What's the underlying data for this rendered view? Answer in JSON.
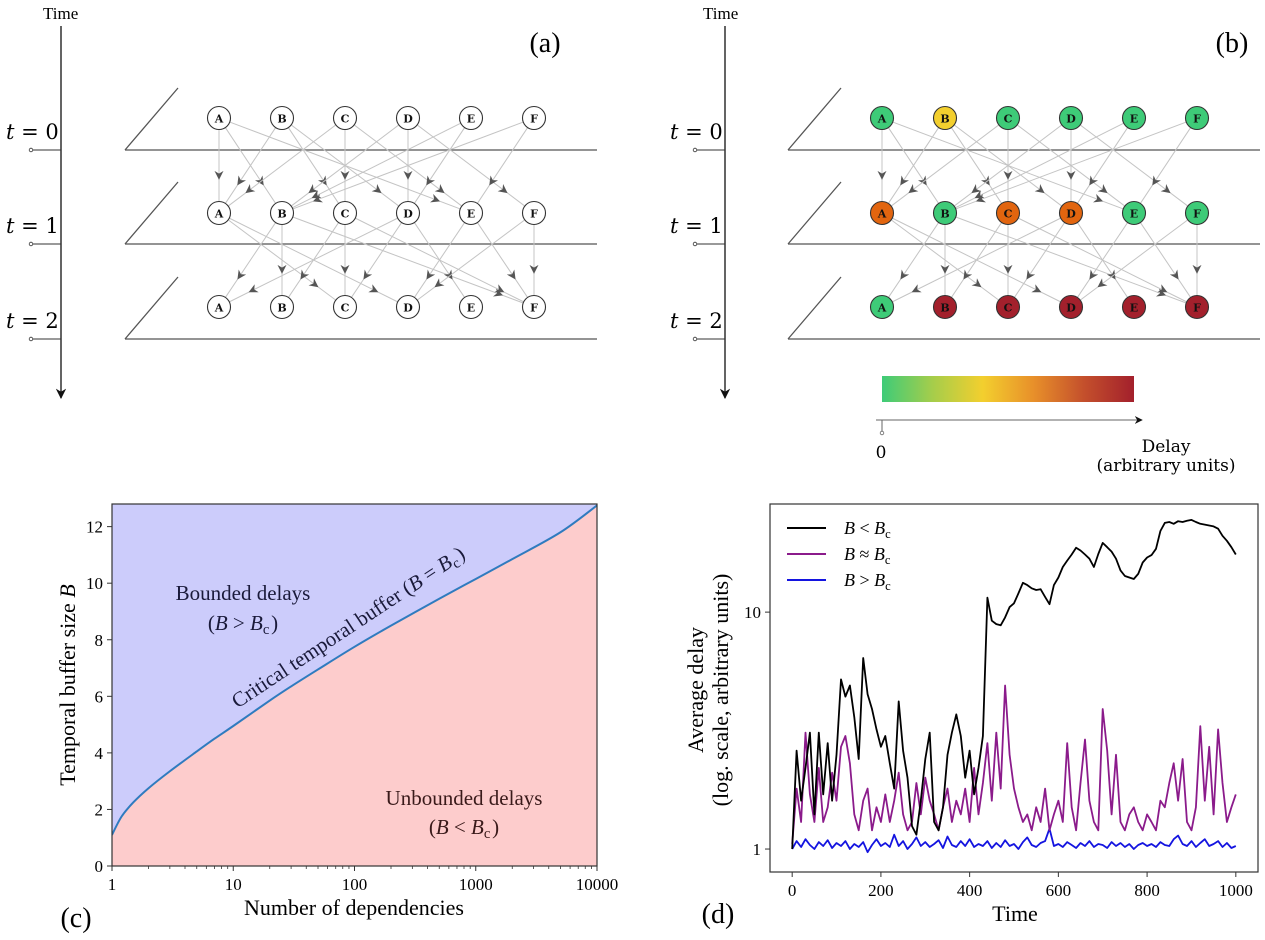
{
  "panel_a": {
    "label": "(a)",
    "time_axis_label": "Time",
    "time_steps": [
      "t = 0",
      "t = 1",
      "t = 2"
    ],
    "nodes": [
      "A",
      "B",
      "C",
      "D",
      "E",
      "F"
    ],
    "edges_0_to_1": [
      [
        "A",
        "A"
      ],
      [
        "A",
        "B"
      ],
      [
        "A",
        "E"
      ],
      [
        "B",
        "A"
      ],
      [
        "B",
        "C"
      ],
      [
        "B",
        "D"
      ],
      [
        "C",
        "A"
      ],
      [
        "C",
        "C"
      ],
      [
        "C",
        "E"
      ],
      [
        "D",
        "B"
      ],
      [
        "D",
        "D"
      ],
      [
        "D",
        "F"
      ],
      [
        "E",
        "B"
      ],
      [
        "E",
        "D"
      ],
      [
        "F",
        "B"
      ],
      [
        "F",
        "E"
      ]
    ],
    "edges_1_to_2": [
      [
        "A",
        "C"
      ],
      [
        "A",
        "D"
      ],
      [
        "B",
        "A"
      ],
      [
        "B",
        "B"
      ],
      [
        "B",
        "F"
      ],
      [
        "C",
        "B"
      ],
      [
        "C",
        "C"
      ],
      [
        "C",
        "F"
      ],
      [
        "D",
        "A"
      ],
      [
        "D",
        "C"
      ],
      [
        "D",
        "E"
      ],
      [
        "E",
        "D"
      ],
      [
        "E",
        "F"
      ],
      [
        "F",
        "D"
      ],
      [
        "F",
        "F"
      ]
    ]
  },
  "panel_b": {
    "label": "(b)",
    "time_axis_label": "Time",
    "time_steps": [
      "t = 0",
      "t = 1",
      "t = 2"
    ],
    "node_states": [
      [
        "green",
        "yellow",
        "green",
        "green",
        "green",
        "green"
      ],
      [
        "orange",
        "green",
        "orange",
        "orange",
        "green",
        "green"
      ],
      [
        "green",
        "darkred",
        "darkred",
        "darkred",
        "darkred",
        "darkred"
      ]
    ],
    "colors": {
      "green": "#3ecb78",
      "yellow": "#f3cf2e",
      "orange": "#e2650f",
      "darkred": "#a3202c"
    },
    "colorbar": {
      "stops": [
        "#3ecb78",
        "#a5cd4b",
        "#f3cf2e",
        "#e8902a",
        "#c4502c",
        "#a3202c"
      ],
      "zero_label": "0",
      "axis_label_line1": "Delay",
      "axis_label_line2": "(arbitrary units)"
    }
  },
  "chart_data": [
    {
      "panel": "(c)",
      "type": "area",
      "xlabel": "Number of dependencies",
      "ylabel": "Temporal buffer size B",
      "xscale": "log",
      "xlim": [
        1,
        10000
      ],
      "ylim": [
        0,
        12.8
      ],
      "xticks": [
        "1",
        "10",
        "100",
        "1000",
        "10000"
      ],
      "yticks": [
        "0",
        "2",
        "4",
        "6",
        "8",
        "10",
        "12"
      ],
      "curve_label": "Critical temporal buffer (B = Bc)",
      "curve": {
        "x": [
          1,
          1.2,
          1.5,
          2,
          3,
          5,
          7,
          10,
          20,
          30,
          50,
          100,
          200,
          500,
          1000,
          2000,
          5000,
          10000
        ],
        "y": [
          1.1,
          1.75,
          2.25,
          2.75,
          3.35,
          4.05,
          4.5,
          4.95,
          5.85,
          6.35,
          6.95,
          7.75,
          8.5,
          9.45,
          10.15,
          10.85,
          11.8,
          12.75
        ]
      },
      "regions": [
        {
          "name": "Bounded delays",
          "condition": "(B > Bc)",
          "color": "#ccccfb",
          "position": "above curve"
        },
        {
          "name": "Unbounded delays",
          "condition": "(B < Bc)",
          "color": "#fdcccc",
          "position": "below curve"
        }
      ],
      "curve_color": "#2f7bbf"
    },
    {
      "panel": "(d)",
      "type": "line",
      "xlabel": "Time",
      "ylabel_line1": "Average delay",
      "ylabel_line2": "(log. scale, arbitrary units)",
      "yscale": "log",
      "xlim": [
        -50,
        1050
      ],
      "ylim": [
        0.8,
        28.6
      ],
      "xticks": [
        "0",
        "200",
        "400",
        "600",
        "800",
        "1000"
      ],
      "yticks": [
        "1",
        "10"
      ],
      "legend_position": "top-left",
      "x": [
        0,
        10,
        20,
        30,
        40,
        50,
        60,
        70,
        80,
        90,
        100,
        110,
        120,
        130,
        140,
        150,
        160,
        170,
        180,
        190,
        200,
        210,
        220,
        230,
        240,
        250,
        260,
        270,
        280,
        290,
        300,
        310,
        320,
        330,
        340,
        350,
        360,
        370,
        380,
        390,
        400,
        410,
        420,
        430,
        440,
        450,
        460,
        470,
        480,
        490,
        500,
        510,
        520,
        530,
        540,
        550,
        560,
        570,
        580,
        590,
        600,
        610,
        620,
        630,
        640,
        650,
        660,
        670,
        680,
        690,
        700,
        710,
        720,
        730,
        740,
        750,
        760,
        770,
        780,
        790,
        800,
        810,
        820,
        830,
        840,
        850,
        860,
        870,
        880,
        890,
        900,
        910,
        920,
        930,
        940,
        950,
        960,
        970,
        980,
        990,
        1000
      ],
      "series": [
        {
          "name": "B < Bc",
          "color": "#000000",
          "values": [
            1.0,
            2.6,
            1.6,
            2.2,
            3.1,
            1.4,
            3.1,
            1.7,
            2.8,
            1.6,
            2.5,
            5.2,
            4.4,
            4.9,
            3.6,
            2.4,
            6.4,
            4.5,
            3.9,
            3.2,
            2.7,
            3.0,
            2.3,
            1.8,
            4.2,
            2.6,
            2.0,
            1.25,
            1.15,
            1.6,
            2.4,
            3.1,
            1.3,
            1.2,
            1.5,
            2.5,
            3.1,
            3.7,
            3.0,
            2.0,
            2.6,
            1.7,
            2.2,
            3.0,
            11.5,
            9.2,
            8.9,
            8.8,
            9.5,
            10.5,
            10.9,
            12.0,
            13.3,
            13.0,
            12.6,
            12.4,
            12.5,
            11.6,
            10.8,
            13.0,
            14.0,
            15.5,
            16.5,
            17.5,
            18.7,
            18.2,
            17.5,
            16.8,
            15.5,
            17.6,
            19.6,
            18.8,
            18.0,
            16.8,
            15.0,
            14.2,
            14.0,
            13.8,
            14.5,
            16.2,
            17.0,
            17.4,
            18.5,
            22.0,
            23.8,
            24.0,
            23.6,
            24.2,
            24.0,
            24.3,
            24.5,
            24.0,
            23.6,
            23.4,
            23.2,
            23.0,
            22.5,
            21.0,
            20.0,
            18.8,
            17.5
          ]
        },
        {
          "name": "B ≈ Bc",
          "color": "#8b1b8b",
          "values": [
            1.05,
            1.8,
            1.3,
            3.1,
            1.7,
            1.3,
            2.2,
            1.3,
            1.5,
            2.1,
            1.6,
            2.7,
            3.0,
            2.3,
            1.4,
            1.2,
            1.6,
            1.8,
            1.2,
            1.5,
            1.3,
            1.7,
            1.3,
            1.6,
            2.1,
            1.4,
            1.2,
            1.3,
            1.9,
            1.4,
            2.0,
            1.6,
            1.4,
            1.2,
            1.5,
            1.8,
            1.3,
            1.6,
            1.4,
            1.8,
            1.3,
            2.2,
            1.4,
            1.9,
            2.8,
            1.6,
            3.1,
            1.8,
            4.9,
            2.5,
            1.8,
            1.5,
            1.3,
            1.4,
            1.2,
            1.5,
            1.3,
            1.8,
            1.2,
            1.4,
            1.6,
            1.3,
            2.8,
            1.5,
            1.2,
            1.9,
            2.9,
            1.6,
            1.3,
            1.2,
            3.9,
            2.6,
            1.4,
            2.5,
            1.3,
            1.2,
            1.4,
            1.5,
            1.3,
            1.2,
            1.4,
            1.3,
            1.2,
            1.6,
            1.5,
            1.9,
            2.3,
            1.6,
            2.4,
            1.3,
            1.2,
            1.5,
            3.3,
            1.6,
            2.7,
            1.4,
            3.2,
            1.9,
            1.3,
            1.5,
            1.7
          ]
        },
        {
          "name": "B > Bc",
          "color": "#1414e0",
          "values": [
            1.0,
            1.08,
            1.02,
            1.1,
            1.04,
            1.0,
            1.07,
            1.03,
            1.09,
            1.01,
            1.06,
            1.03,
            1.08,
            1.0,
            1.05,
            1.02,
            1.07,
            0.97,
            1.04,
            1.1,
            1.03,
            1.06,
            1.02,
            1.15,
            1.03,
            1.08,
            1.0,
            1.05,
            1.12,
            1.03,
            1.07,
            1.02,
            1.05,
            1.09,
            1.01,
            1.13,
            1.04,
            1.02,
            1.08,
            1.03,
            1.1,
            1.02,
            1.05,
            1.03,
            1.08,
            1.01,
            1.06,
            1.02,
            1.09,
            1.03,
            1.05,
            1.0,
            1.07,
            1.12,
            1.04,
            1.02,
            1.06,
            1.08,
            1.22,
            1.03,
            1.05,
            1.02,
            1.07,
            1.04,
            1.01,
            1.06,
            1.03,
            1.08,
            1.02,
            1.05,
            1.04,
            1.01,
            1.07,
            1.03,
            1.06,
            1.02,
            1.05,
            1.0,
            1.04,
            1.06,
            1.03,
            1.05,
            1.02,
            1.07,
            1.04,
            1.03,
            1.1,
            1.14,
            1.05,
            1.03,
            1.08,
            1.02,
            1.06,
            1.1,
            1.03,
            1.05,
            1.08,
            1.02,
            1.06,
            1.01,
            1.03
          ]
        }
      ]
    }
  ],
  "panel_labels": {
    "c": "(c)",
    "d": "(d)"
  }
}
